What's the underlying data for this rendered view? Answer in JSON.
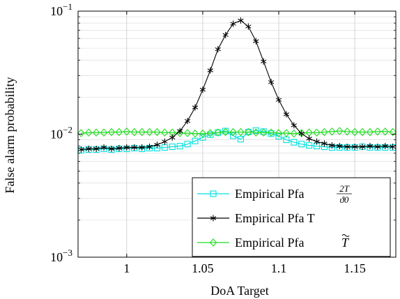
{
  "chart_data": {
    "type": "line",
    "title": "",
    "xlabel": "DoA Target",
    "ylabel": "False alarm probability",
    "xlim": [
      0.968,
      1.177
    ],
    "ylim": [
      0.001,
      0.1
    ],
    "yscale": "log",
    "grid": true,
    "legend_position": "bottom-right",
    "x_ticks": [
      1,
      1.05,
      1.1,
      1.15
    ],
    "x_tick_labels": [
      "1",
      "1.05",
      "1.1",
      "1.15"
    ],
    "y_ticks": [
      0.001,
      0.01,
      0.1
    ],
    "y_tick_labels": [
      {
        "base": "10",
        "exp": "−3"
      },
      {
        "base": "10",
        "exp": "−2"
      },
      {
        "base": "10",
        "exp": "−1"
      }
    ],
    "x": [
      0.97,
      0.975,
      0.98,
      0.985,
      0.99,
      0.995,
      1.0,
      1.005,
      1.01,
      1.015,
      1.02,
      1.025,
      1.03,
      1.035,
      1.04,
      1.045,
      1.05,
      1.055,
      1.06,
      1.065,
      1.07,
      1.075,
      1.08,
      1.085,
      1.09,
      1.095,
      1.1,
      1.105,
      1.11,
      1.115,
      1.12,
      1.125,
      1.13,
      1.135,
      1.14,
      1.145,
      1.15,
      1.155,
      1.16,
      1.165,
      1.17,
      1.175
    ],
    "series": [
      {
        "name": "Empirical Pfa",
        "legend_math": "fraction",
        "legend_num": "2T",
        "legend_den": "ϑ0",
        "color": "#00e0e0",
        "marker": "square",
        "values": [
          0.0074,
          0.0075,
          0.0075,
          0.0076,
          0.0075,
          0.0076,
          0.0076,
          0.0077,
          0.0076,
          0.0077,
          0.0077,
          0.0078,
          0.0079,
          0.008,
          0.0083,
          0.0088,
          0.0094,
          0.0099,
          0.0103,
          0.0106,
          0.0097,
          0.0091,
          0.0104,
          0.0107,
          0.0105,
          0.0101,
          0.0096,
          0.009,
          0.0086,
          0.0083,
          0.0081,
          0.008,
          0.0079,
          0.0078,
          0.0078,
          0.0078,
          0.0078,
          0.0079,
          0.0078,
          0.0078,
          0.0078,
          0.0078
        ]
      },
      {
        "name": "Empirical Pfa T",
        "legend_math": "none",
        "color": "#000000",
        "marker": "asterisk",
        "values": [
          0.0075,
          0.0076,
          0.0076,
          0.0078,
          0.0076,
          0.0077,
          0.0078,
          0.0078,
          0.0078,
          0.0079,
          0.0082,
          0.0087,
          0.0094,
          0.0106,
          0.0128,
          0.0165,
          0.023,
          0.033,
          0.049,
          0.064,
          0.079,
          0.084,
          0.075,
          0.057,
          0.039,
          0.0265,
          0.019,
          0.0145,
          0.0118,
          0.0101,
          0.0092,
          0.0087,
          0.0084,
          0.0081,
          0.008,
          0.0079,
          0.0079,
          0.0079,
          0.008,
          0.0079,
          0.008,
          0.0079
        ]
      },
      {
        "name": "Empirical Pfa",
        "legend_math": "tilde",
        "legend_sym": "T",
        "color": "#22dd22",
        "marker": "diamond",
        "values": [
          0.0102,
          0.0103,
          0.0103,
          0.0103,
          0.0104,
          0.0104,
          0.0105,
          0.0104,
          0.0104,
          0.0104,
          0.0104,
          0.0103,
          0.0103,
          0.0102,
          0.0102,
          0.0101,
          0.0101,
          0.0102,
          0.0103,
          0.0104,
          0.0104,
          0.0104,
          0.0104,
          0.0103,
          0.0103,
          0.0103,
          0.0102,
          0.0102,
          0.0101,
          0.0102,
          0.0103,
          0.0103,
          0.0104,
          0.0105,
          0.0106,
          0.0105,
          0.0104,
          0.0104,
          0.0104,
          0.0105,
          0.0105,
          0.0104
        ]
      }
    ]
  }
}
